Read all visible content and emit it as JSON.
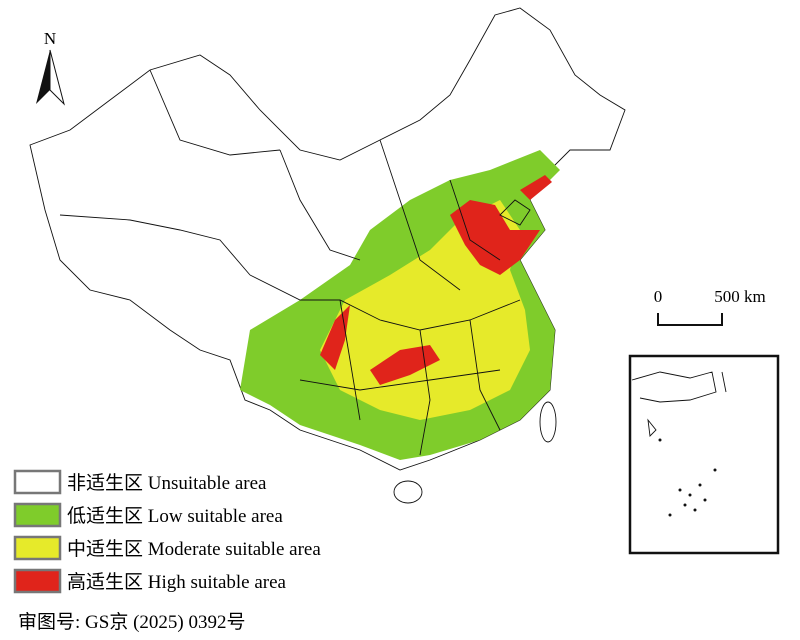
{
  "north_label": "N",
  "scale_bar": {
    "start": "0",
    "end": "500 km"
  },
  "legend": [
    {
      "label": "非适生区 Unsuitable area",
      "color": "#ffffff"
    },
    {
      "label": "低适生区 Low suitable area",
      "color": "#7fcc2b"
    },
    {
      "label": "中适生区 Moderate suitable area",
      "color": "#e6ea2a"
    },
    {
      "label": "高适生区 High suitable area",
      "color": "#e0241b"
    }
  ],
  "approval_number": "审图号: GS京 (2025) 0392号"
}
